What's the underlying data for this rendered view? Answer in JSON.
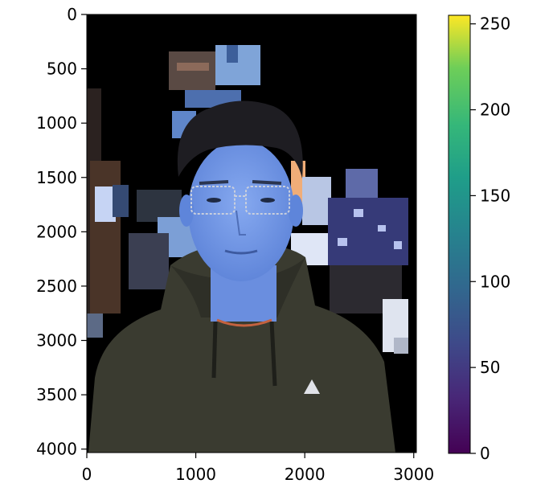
{
  "chart_data": {
    "type": "heatmap",
    "title": "",
    "xlabel": "",
    "ylabel": "",
    "image": {
      "xlim": [
        0,
        3024
      ],
      "ylim": [
        4032,
        0
      ],
      "x_ticks": [
        "0",
        "1000",
        "2000",
        "3000"
      ],
      "x_tick_values": [
        0,
        1000,
        2000,
        3000
      ],
      "y_ticks": [
        "0",
        "500",
        "1000",
        "1500",
        "2000",
        "2500",
        "3000",
        "3500",
        "4000"
      ],
      "y_tick_values": [
        0,
        500,
        1000,
        1500,
        2000,
        2500,
        3000,
        3500,
        4000
      ],
      "content_description": "background-masked photo of a person in a dark hoodie, face tinted blue"
    },
    "colorbar": {
      "colormap": "viridis",
      "range": [
        0,
        255
      ],
      "ticks": [
        "0",
        "50",
        "100",
        "150",
        "200",
        "250"
      ],
      "tick_values": [
        0,
        50,
        100,
        150,
        200,
        250
      ]
    }
  },
  "colors": {
    "background": "#000000",
    "skin": "#6f95e6",
    "hoodie": "#3a3b30",
    "hair": "#1e1d22"
  }
}
